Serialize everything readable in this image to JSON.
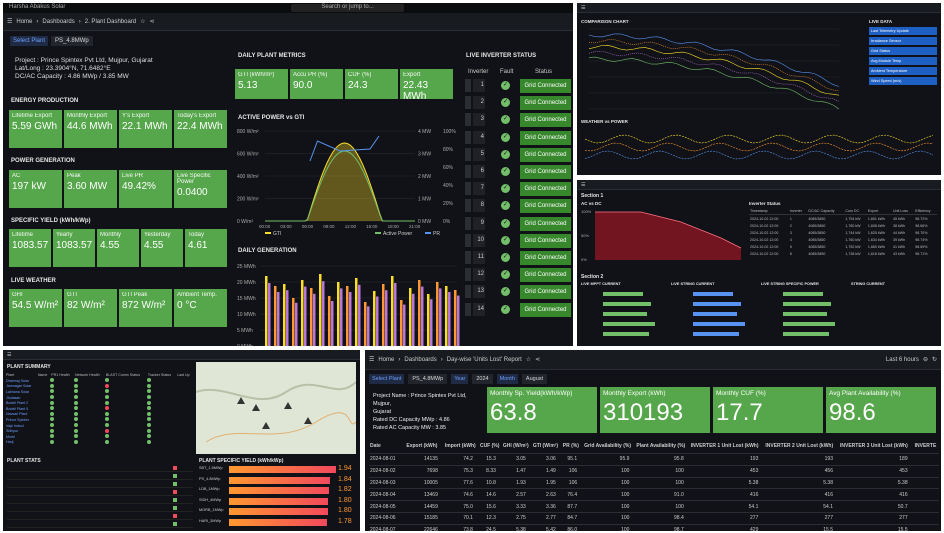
{
  "main": {
    "breadcrumb": [
      "Home",
      "Dashboards",
      "2. Plant Dashboard"
    ],
    "search_placeholder": "Search or jump to...",
    "top_left": "Harsha Abakus Solar",
    "select_plant_label": "Select Plant",
    "select_plant_value": "PS_4.8MWp",
    "project": "Project : Prince Spintex Pvt Ltd, Mujpur, Gujarat",
    "latlong": "Lat/Long : 23.3904°N, 71.6482°E",
    "capacity": "DC/AC Capacity : 4.86 MWp / 3.85 MW",
    "energy_title": "ENERGY PRODUCTION",
    "energy": [
      {
        "l": "Lifetime Export",
        "v": "5.59 GWh"
      },
      {
        "l": "Monthly Export",
        "v": "44.6 MWh"
      },
      {
        "l": "Y's Export",
        "v": "22.1 MWh"
      },
      {
        "l": "Today's Export",
        "v": "22.4 MWh"
      }
    ],
    "power_title": "POWER GENERATION",
    "power": [
      {
        "l": "AC",
        "v": "197 kW"
      },
      {
        "l": "Peak",
        "v": "3.60 MW"
      },
      {
        "l": "Live PR",
        "v": "49.42%"
      },
      {
        "l": "Live Specific Power",
        "v": "0.0400"
      }
    ],
    "yield_title": "SPECIFIC YIELD (kWh/kWp)",
    "yield": [
      {
        "l": "Lifetime",
        "v": "1083.57"
      },
      {
        "l": "Yearly",
        "v": "1083.57"
      },
      {
        "l": "Monthly",
        "v": "4.55"
      },
      {
        "l": "Yesterday",
        "v": "4.55"
      },
      {
        "l": "Today",
        "v": "4.61"
      }
    ],
    "weather_title": "LIVE WEATHER",
    "weather": [
      {
        "l": "GHI",
        "v": "54.5 W/m²"
      },
      {
        "l": "GTI",
        "v": "82 W/m²"
      },
      {
        "l": "GTI Peak",
        "v": "872 W/m²"
      },
      {
        "l": "Ambient Temp.",
        "v": "0 °C"
      }
    ],
    "daily_title": "DAILY PLANT METRICS",
    "daily": [
      {
        "l": "GTI (kWh/m²)",
        "v": "5.13"
      },
      {
        "l": "Accu PR (%)",
        "v": "90.0"
      },
      {
        "l": "CUF (%)",
        "v": "24.3"
      },
      {
        "l": "Export",
        "v": "22.43 MWh"
      }
    ],
    "ap_title": "ACTIVE POWER vs GTI",
    "ap_yticks": [
      "800 W/m²",
      "600 W/m²",
      "400 W/m²",
      "200 W/m²",
      "0 W/m²"
    ],
    "ap_y2ticks": [
      "4 MW",
      "3 MW",
      "2 MW",
      "1 MW",
      "0 MW"
    ],
    "ap_y3ticks": [
      "100%",
      "80%",
      "60%",
      "40%",
      "20%",
      "0%"
    ],
    "ap_xticks": [
      "00:00",
      "03:00",
      "06:00",
      "09:00",
      "12:00",
      "15:00",
      "18:00",
      "21:00"
    ],
    "ap_legend": [
      "GTI",
      "Active Power",
      "PR"
    ],
    "dg_title": "DAILY GENERATION",
    "dg_yticks": [
      "25 MWh",
      "20 MWh",
      "15 MWh",
      "10 MWh",
      "5 MWh",
      "0 MWh"
    ],
    "inv_title": "LIVE INVERTER STATUS",
    "inv_headers": [
      "Inverter",
      "Fault",
      "Status"
    ],
    "inv_status": "Grid Connected",
    "inverters": [
      "1",
      "2",
      "3",
      "4",
      "5",
      "6",
      "7",
      "8",
      "9",
      "10",
      "11",
      "12",
      "13",
      "14"
    ]
  },
  "report": {
    "breadcrumb": [
      "Home",
      "Dashboards",
      "Day-wise 'Units Lost' Report"
    ],
    "last": "Last 6 hours",
    "filters": [
      {
        "l": "Select Plant",
        "v": "PS_4.8MWp"
      },
      {
        "l": "Year",
        "v": "2024"
      },
      {
        "l": "Month",
        "v": "August"
      }
    ],
    "project": [
      "Project Name : Prince Spintex Pvt Ltd, Mujpur,",
      "Gujarat",
      "Rated DC Capacity MWp : 4.86",
      "Rated AC Capacity MW : 3.85"
    ],
    "stats": [
      {
        "l": "Monthly Sp. Yield(kWh/kWp)",
        "v": "63.8"
      },
      {
        "l": "Monthly Export (kWh)",
        "v": "310193"
      },
      {
        "l": "Monthly CUF (%)",
        "v": "17.7"
      },
      {
        "l": "Avg Plant Availability (%)",
        "v": "98.6"
      }
    ],
    "headers": [
      "Date",
      "Export (kWh)",
      "Import (kWh)",
      "CUF (%)",
      "GHI (W/m²)",
      "GTI (W/m²)",
      "PR (%)",
      "Grid Availability (%)",
      "Plant Availability (%)",
      "INVERTER 1 Unit Lost (kWh)",
      "INVERTER 2 Unit Lost (kWh)",
      "INVERTER 3 Unit Lost (kWh)",
      "INVERTE"
    ],
    "rows": [
      [
        "2024-08-01",
        "14135",
        "74.2",
        "15.3",
        "3.05",
        "3.06",
        "95.1",
        "95.9",
        "95.8",
        "193",
        "193",
        "189"
      ],
      [
        "2024-08-02",
        "7698",
        "75.3",
        "8.33",
        "1.47",
        "1.49",
        "106",
        "100",
        "100",
        "453",
        "456",
        "453"
      ],
      [
        "2024-08-03",
        "10005",
        "77.6",
        "10.8",
        "1.93",
        "1.95",
        "106",
        "100",
        "100",
        "5.38",
        "5.38",
        "5.38"
      ],
      [
        "2024-08-04",
        "13469",
        "74.6",
        "14.6",
        "2.57",
        "2.63",
        "76.4",
        "100",
        "91.0",
        "416",
        "416",
        "416"
      ],
      [
        "2024-08-05",
        "14459",
        "75.0",
        "15.6",
        "3.33",
        "3.36",
        "87.7",
        "100",
        "100",
        "54.1",
        "54.1",
        "50.7"
      ],
      [
        "2024-08-06",
        "15185",
        "70.1",
        "12.3",
        "2.75",
        "2.77",
        "84.7",
        "100",
        "98.4",
        "277",
        "277",
        "277"
      ],
      [
        "2024-08-07",
        "22646",
        "73.8",
        "24.5",
        "5.38",
        "5.42",
        "86.0",
        "100",
        "98.7",
        "429",
        "15.5",
        "15.5"
      ]
    ]
  },
  "tr": {
    "title": "COMPARISON CHART",
    "side_title": "LIVE DATA",
    "side": [
      "Last Telemetry Update",
      "Irradiance Sensor",
      "Grid Status",
      "Avg Module Temp",
      "Ambient Temperature",
      "Wind Speed (m/s)"
    ],
    "bottom_title": "WEATHER vs POWER"
  },
  "mr": {
    "sec1": "Section 1",
    "sec2": "Section 2",
    "ac_title": "AC vs DC",
    "ac_pct": [
      "100%",
      "50%",
      "0%"
    ],
    "status_title": "Inverter Status",
    "st_headers": [
      "Timestamp",
      "Inverter",
      "DC/AC Capacity",
      "Cum DC",
      "Export",
      "Unit Loss",
      "Efficiency"
    ],
    "st_rows": [
      [
        "2024-10-02 12:00",
        "1",
        "4085/3850",
        "1,754 kW",
        "1,651 kWh",
        "45 kWh",
        "98.72%"
      ],
      [
        "2024-10-02 12:00",
        "2",
        "4085/3850",
        "1,780 kW",
        "1,608 kWh",
        "38 kWh",
        "98.66%"
      ],
      [
        "2024-10-02 12:00",
        "3",
        "4085/3850",
        "1,744 kW",
        "1,625 kWh",
        "44 kWh",
        "98.70%"
      ],
      [
        "2024-10-02 12:00",
        "4",
        "4085/3850",
        "1,760 kW",
        "1,634 kWh",
        "39 kWh",
        "98.74%"
      ],
      [
        "2024-10-02 12:00",
        "5",
        "4085/3850",
        "1,752 kW",
        "1,660 kWh",
        "41 kWh",
        "98.69%"
      ],
      [
        "2024-10-02 12:00",
        "6",
        "4085/3850",
        "1,738 kW",
        "1,618 kWh",
        "43 kWh",
        "98.71%"
      ]
    ],
    "b_titles": [
      "LIVE MPPT CURRENT",
      "LIVE STRING CURRENT",
      "LIVE STRING SPECIFIC POWER",
      "STRING CURRENT"
    ]
  },
  "bl": {
    "title": "PLANT SUMMARY",
    "headers": [
      "Plant",
      "Name",
      "PR1 Health",
      "Network Health",
      "BLAST Comm Status",
      "Tracker Status",
      "Last Up"
    ],
    "plants": [
      "Dharmaj Solar",
      "Jamnagar Solar",
      "Lakhana Solar",
      "Jhulasan",
      "Bodeli Plant 2",
      "Bodeli Plant 5",
      "Navsari Plant",
      "Prince Spintex",
      "Vapi Indsol",
      "Sidhpur",
      "Morbi",
      "Harij"
    ],
    "map_title": "Map",
    "stat_title": "PLANT STATS",
    "spec_title": "PLANT SPECIFIC YIELD (kWh/kWp)",
    "spec": [
      "1.94",
      "1.84",
      "1.82",
      "1.80",
      "1.80",
      "1.78"
    ],
    "spec_labels": [
      "SBT_1.5MWp",
      "PS_4.8MWp",
      "LDB_1MWp",
      "SIDH_4MWp",
      "MORB_1MWp",
      "HARI_3MWp"
    ]
  },
  "colors": {
    "green": "#56a64b",
    "dark": "#111217",
    "yellow": "#fade2a",
    "orange": "#ff9830",
    "blue": "#5794f2"
  }
}
